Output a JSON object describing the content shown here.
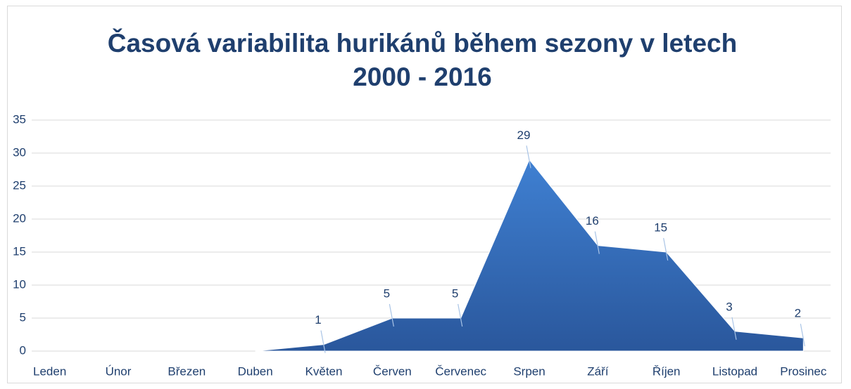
{
  "chart_data": {
    "type": "area",
    "title": "Časová variabilita hurikánů během sezony v letech 2000 - 2016",
    "categories": [
      "Leden",
      "Únor",
      "Březen",
      "Duben",
      "Květen",
      "Červen",
      "Červenec",
      "Srpen",
      "Září",
      "Říjen",
      "Listopad",
      "Prosinec"
    ],
    "values": [
      null,
      null,
      null,
      0,
      1,
      5,
      5,
      29,
      16,
      15,
      3,
      2
    ],
    "value_labels": [
      null,
      null,
      null,
      null,
      "1",
      "5",
      "5",
      "29",
      "16",
      "15",
      "3",
      "2"
    ],
    "color": "#3166b3",
    "ylim": [
      0,
      35
    ],
    "yticks": [
      0,
      5,
      10,
      15,
      20,
      25,
      30,
      35
    ],
    "grid": true
  }
}
